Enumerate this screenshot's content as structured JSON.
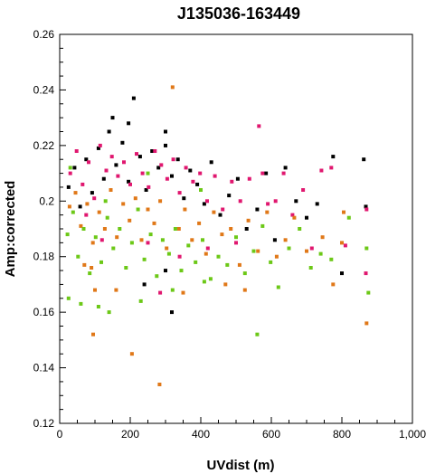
{
  "chart_data": {
    "type": "scatter",
    "title": "J135036-163449",
    "xlabel": "UVdist (m)",
    "ylabel": "Amp:corrected",
    "xlim": [
      0,
      1000
    ],
    "ylim": [
      0.12,
      0.26
    ],
    "xticks": [
      0,
      200,
      400,
      600,
      800,
      1000
    ],
    "xtick_labels": [
      "0",
      "200",
      "400",
      "600",
      "800",
      "1,000"
    ],
    "yticks": [
      0.12,
      0.14,
      0.16,
      0.18,
      0.2,
      0.22,
      0.24,
      0.26
    ],
    "ytick_labels": [
      "0.12",
      "0.14",
      "0.16",
      "0.18",
      "0.2",
      "0.22",
      "0.24",
      "0.26"
    ],
    "grid": false,
    "series": [
      {
        "color": "#000000",
        "points": [
          [
            25,
            0.205
          ],
          [
            42,
            0.212
          ],
          [
            58,
            0.198
          ],
          [
            75,
            0.215
          ],
          [
            92,
            0.203
          ],
          [
            110,
            0.219
          ],
          [
            125,
            0.208
          ],
          [
            140,
            0.225
          ],
          [
            160,
            0.213
          ],
          [
            178,
            0.221
          ],
          [
            195,
            0.207
          ],
          [
            210,
            0.237
          ],
          [
            228,
            0.216
          ],
          [
            245,
            0.204
          ],
          [
            262,
            0.218
          ],
          [
            280,
            0.212
          ],
          [
            300,
            0.22
          ],
          [
            318,
            0.209
          ],
          [
            335,
            0.215
          ],
          [
            352,
            0.201
          ],
          [
            370,
            0.211
          ],
          [
            390,
            0.206
          ],
          [
            410,
            0.199
          ],
          [
            430,
            0.214
          ],
          [
            455,
            0.195
          ],
          [
            480,
            0.202
          ],
          [
            505,
            0.208
          ],
          [
            530,
            0.19
          ],
          [
            560,
            0.197
          ],
          [
            585,
            0.21
          ],
          [
            610,
            0.186
          ],
          [
            640,
            0.212
          ],
          [
            670,
            0.2
          ],
          [
            700,
            0.194
          ],
          [
            730,
            0.199
          ],
          [
            775,
            0.216
          ],
          [
            800,
            0.174
          ],
          [
            862,
            0.215
          ],
          [
            868,
            0.198
          ],
          [
            150,
            0.23
          ],
          [
            195,
            0.228
          ],
          [
            300,
            0.225
          ],
          [
            318,
            0.16
          ],
          [
            300,
            0.175
          ],
          [
            240,
            0.17
          ]
        ]
      },
      {
        "color": "#e0176f",
        "points": [
          [
            30,
            0.21
          ],
          [
            48,
            0.218
          ],
          [
            65,
            0.206
          ],
          [
            82,
            0.214
          ],
          [
            98,
            0.201
          ],
          [
            115,
            0.22
          ],
          [
            132,
            0.211
          ],
          [
            148,
            0.216
          ],
          [
            165,
            0.209
          ],
          [
            182,
            0.214
          ],
          [
            200,
            0.206
          ],
          [
            218,
            0.217
          ],
          [
            235,
            0.21
          ],
          [
            252,
            0.205
          ],
          [
            270,
            0.218
          ],
          [
            288,
            0.213
          ],
          [
            305,
            0.208
          ],
          [
            322,
            0.215
          ],
          [
            340,
            0.203
          ],
          [
            358,
            0.212
          ],
          [
            378,
            0.207
          ],
          [
            398,
            0.21
          ],
          [
            418,
            0.2
          ],
          [
            440,
            0.209
          ],
          [
            462,
            0.197
          ],
          [
            488,
            0.207
          ],
          [
            512,
            0.2
          ],
          [
            538,
            0.208
          ],
          [
            565,
            0.227
          ],
          [
            590,
            0.199
          ],
          [
            612,
            0.2
          ],
          [
            635,
            0.21
          ],
          [
            660,
            0.195
          ],
          [
            690,
            0.204
          ],
          [
            715,
            0.183
          ],
          [
            742,
            0.211
          ],
          [
            770,
            0.212
          ],
          [
            810,
            0.184
          ],
          [
            868,
            0.174
          ],
          [
            870,
            0.197
          ],
          [
            575,
            0.21
          ],
          [
            500,
            0.185
          ],
          [
            420,
            0.183
          ],
          [
            340,
            0.18
          ],
          [
            250,
            0.185
          ],
          [
            120,
            0.186
          ],
          [
            75,
            0.195
          ],
          [
            285,
            0.167
          ]
        ]
      },
      {
        "color": "#e07818",
        "points": [
          [
            28,
            0.198
          ],
          [
            45,
            0.203
          ],
          [
            60,
            0.191
          ],
          [
            78,
            0.199
          ],
          [
            94,
            0.185
          ],
          [
            112,
            0.196
          ],
          [
            128,
            0.19
          ],
          [
            145,
            0.204
          ],
          [
            162,
            0.187
          ],
          [
            180,
            0.199
          ],
          [
            198,
            0.193
          ],
          [
            215,
            0.201
          ],
          [
            232,
            0.186
          ],
          [
            250,
            0.197
          ],
          [
            268,
            0.192
          ],
          [
            285,
            0.2
          ],
          [
            303,
            0.183
          ],
          [
            320,
            0.241
          ],
          [
            338,
            0.19
          ],
          [
            355,
            0.197
          ],
          [
            375,
            0.186
          ],
          [
            395,
            0.192
          ],
          [
            415,
            0.181
          ],
          [
            437,
            0.196
          ],
          [
            460,
            0.188
          ],
          [
            485,
            0.19
          ],
          [
            510,
            0.177
          ],
          [
            535,
            0.193
          ],
          [
            562,
            0.182
          ],
          [
            588,
            0.196
          ],
          [
            615,
            0.18
          ],
          [
            640,
            0.186
          ],
          [
            665,
            0.194
          ],
          [
            700,
            0.182
          ],
          [
            745,
            0.187
          ],
          [
            775,
            0.17
          ],
          [
            800,
            0.185
          ],
          [
            805,
            0.196
          ],
          [
            870,
            0.156
          ],
          [
            90,
            0.176
          ],
          [
            95,
            0.152
          ],
          [
            100,
            0.168
          ],
          [
            205,
            0.145
          ],
          [
            283,
            0.134
          ],
          [
            160,
            0.168
          ],
          [
            350,
            0.167
          ],
          [
            470,
            0.17
          ],
          [
            525,
            0.168
          ],
          [
            70,
            0.177
          ]
        ]
      },
      {
        "color": "#6cc817",
        "points": [
          [
            22,
            0.188
          ],
          [
            38,
            0.196
          ],
          [
            52,
            0.18
          ],
          [
            68,
            0.19
          ],
          [
            85,
            0.174
          ],
          [
            102,
            0.187
          ],
          [
            118,
            0.178
          ],
          [
            135,
            0.194
          ],
          [
            152,
            0.183
          ],
          [
            170,
            0.19
          ],
          [
            188,
            0.176
          ],
          [
            205,
            0.185
          ],
          [
            222,
            0.197
          ],
          [
            240,
            0.179
          ],
          [
            258,
            0.188
          ],
          [
            275,
            0.173
          ],
          [
            292,
            0.186
          ],
          [
            310,
            0.181
          ],
          [
            328,
            0.19
          ],
          [
            345,
            0.175
          ],
          [
            365,
            0.184
          ],
          [
            385,
            0.178
          ],
          [
            405,
            0.186
          ],
          [
            428,
            0.172
          ],
          [
            450,
            0.18
          ],
          [
            475,
            0.177
          ],
          [
            500,
            0.187
          ],
          [
            525,
            0.174
          ],
          [
            550,
            0.182
          ],
          [
            575,
            0.191
          ],
          [
            598,
            0.178
          ],
          [
            620,
            0.169
          ],
          [
            650,
            0.183
          ],
          [
            680,
            0.19
          ],
          [
            712,
            0.176
          ],
          [
            740,
            0.181
          ],
          [
            770,
            0.179
          ],
          [
            820,
            0.194
          ],
          [
            870,
            0.183
          ],
          [
            875,
            0.167
          ],
          [
            25,
            0.165
          ],
          [
            60,
            0.163
          ],
          [
            140,
            0.16
          ],
          [
            230,
            0.164
          ],
          [
            320,
            0.168
          ],
          [
            410,
            0.171
          ],
          [
            560,
            0.152
          ],
          [
            30,
            0.212
          ],
          [
            130,
            0.2
          ],
          [
            250,
            0.21
          ],
          [
            400,
            0.204
          ],
          [
            110,
            0.162
          ]
        ]
      }
    ]
  }
}
